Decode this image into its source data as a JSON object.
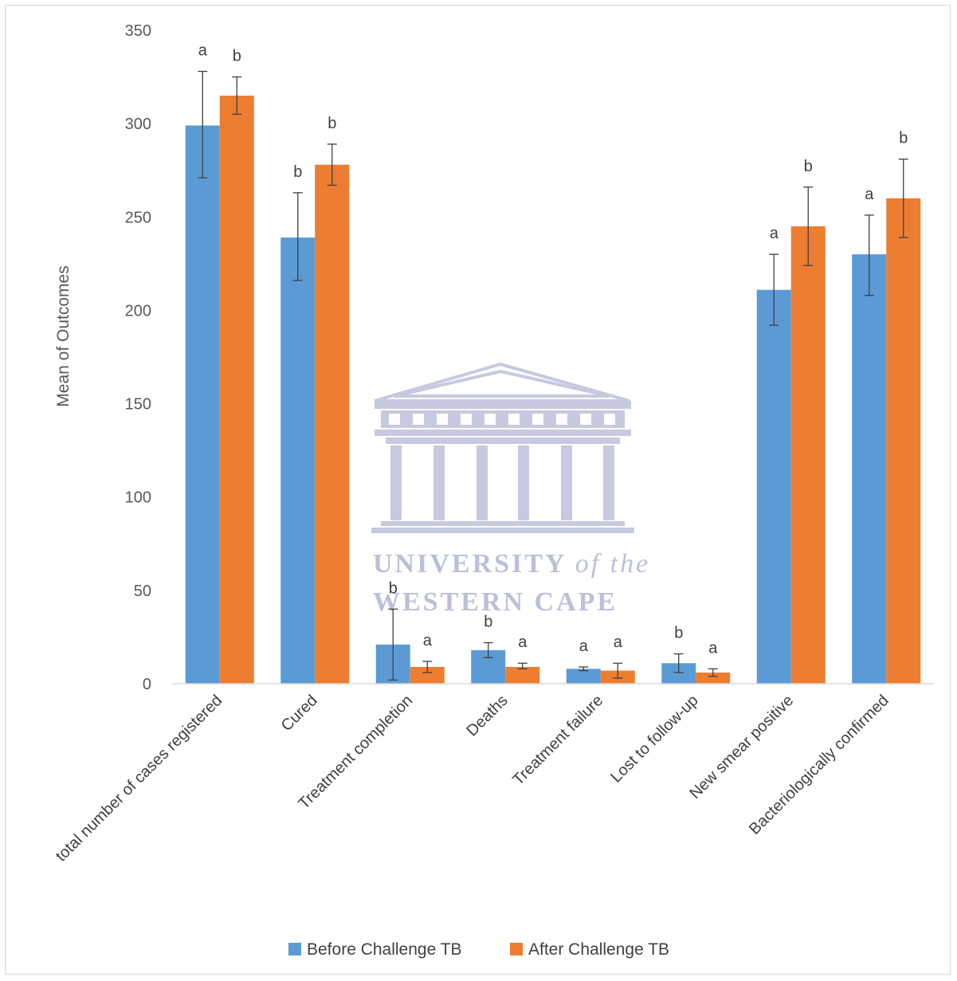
{
  "chart_data": {
    "type": "bar",
    "title": "",
    "ylabel": "Mean of Outcomes",
    "xlabel": "",
    "ylim": [
      0,
      350
    ],
    "yticks": [
      0,
      50,
      100,
      150,
      200,
      250,
      300,
      350
    ],
    "categories": [
      "total number of cases registered",
      "Cured",
      "Treatment completion",
      "Deaths",
      "Treatment failure",
      "Lost to follow-up",
      "New smear positive",
      "Bacteriologically confirmed"
    ],
    "series": [
      {
        "name": "Before Challenge TB",
        "color": "#5b9bd5",
        "values": [
          299,
          239,
          21,
          18,
          8,
          11,
          211,
          230
        ],
        "error_low": [
          271,
          216,
          2,
          14,
          7,
          6,
          192,
          208
        ],
        "error_high": [
          328,
          263,
          40,
          22,
          9,
          16,
          230,
          251
        ],
        "significance": [
          "a",
          "b",
          "b",
          "b",
          "a",
          "b",
          "a",
          "a"
        ]
      },
      {
        "name": "After Challenge TB",
        "color": "#ed7d31",
        "values": [
          315,
          278,
          9,
          9,
          7,
          6,
          245,
          260
        ],
        "error_low": [
          305,
          267,
          6,
          8,
          3,
          4,
          224,
          239
        ],
        "error_high": [
          325,
          289,
          12,
          11,
          11,
          8,
          266,
          281
        ],
        "significance": [
          "b",
          "b",
          "a",
          "a",
          "a",
          "a",
          "b",
          "b"
        ]
      }
    ],
    "legend_position": "bottom",
    "grid": false
  },
  "watermark": {
    "line1_main": "UNIVERSITY",
    "line1_italic": "of the",
    "line2": "WESTERN CAPE",
    "color": "#b8bdd6"
  }
}
